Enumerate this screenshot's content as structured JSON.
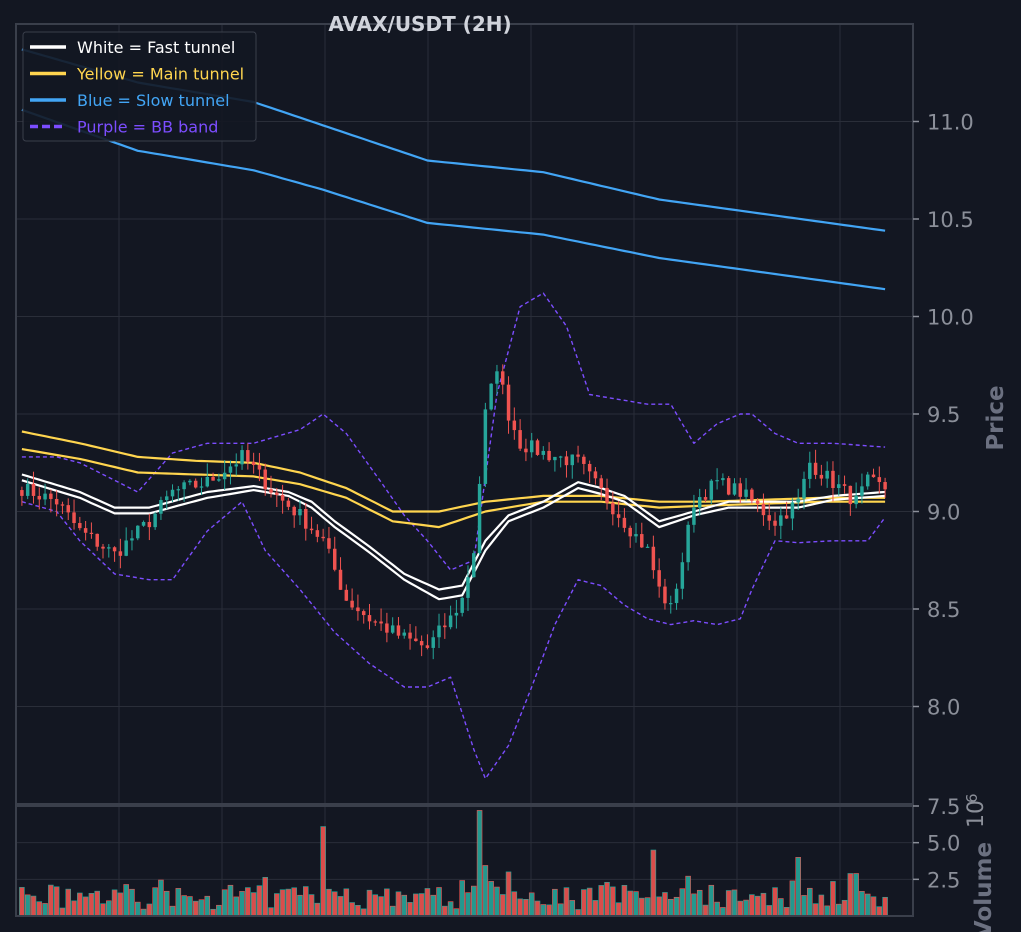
{
  "chart_data": {
    "type": "candlestick",
    "title": "AVAX/USDT (2H)",
    "price_axis": {
      "label": "Price",
      "ylim": [
        7.5,
        11.5
      ],
      "ticks": [
        8.0,
        8.5,
        9.0,
        9.5,
        10.0,
        10.5,
        11.0
      ]
    },
    "volume_axis": {
      "label": "Volume",
      "multiplier_label": "1e6",
      "ylim": [
        0,
        7.5
      ],
      "ticks": [
        2.5,
        5.0,
        7.5
      ]
    },
    "grid": true,
    "legend_position": "top-left",
    "legend": [
      {
        "label": "White = Fast tunnel",
        "color": "#ffffff",
        "style": "solid"
      },
      {
        "label": "Yellow = Main tunnel",
        "color": "#ffd54f",
        "style": "solid"
      },
      {
        "label": "Blue = Slow tunnel",
        "color": "#42a5f5",
        "style": "solid"
      },
      {
        "label": "Purple = BB band",
        "color": "#7c4dff",
        "style": "dashed"
      }
    ],
    "colors": {
      "up": "#26a69a",
      "down": "#ef5350",
      "background": "#131722",
      "grid": "#2a2e39",
      "axis": "#8b8f99"
    },
    "n_candles": 150,
    "close_anchors": [
      [
        0,
        9.12
      ],
      [
        6,
        9.05
      ],
      [
        10,
        8.9
      ],
      [
        16,
        8.78
      ],
      [
        22,
        8.95
      ],
      [
        26,
        9.1
      ],
      [
        32,
        9.15
      ],
      [
        38,
        9.28
      ],
      [
        40,
        9.22
      ],
      [
        44,
        9.08
      ],
      [
        48,
        8.98
      ],
      [
        52,
        8.85
      ],
      [
        54,
        8.7
      ],
      [
        56,
        8.55
      ],
      [
        60,
        8.45
      ],
      [
        66,
        8.35
      ],
      [
        70,
        8.3
      ],
      [
        72,
        8.38
      ],
      [
        74,
        8.45
      ],
      [
        76,
        8.55
      ],
      [
        78,
        8.8
      ],
      [
        80,
        9.5
      ],
      [
        82,
        9.75
      ],
      [
        84,
        9.5
      ],
      [
        86,
        9.35
      ],
      [
        90,
        9.3
      ],
      [
        96,
        9.25
      ],
      [
        100,
        9.1
      ],
      [
        104,
        8.95
      ],
      [
        108,
        8.8
      ],
      [
        110,
        8.6
      ],
      [
        112,
        8.5
      ],
      [
        114,
        8.75
      ],
      [
        116,
        9.05
      ],
      [
        120,
        9.15
      ],
      [
        124,
        9.1
      ],
      [
        128,
        9.0
      ],
      [
        130,
        8.95
      ],
      [
        134,
        9.05
      ],
      [
        136,
        9.25
      ],
      [
        140,
        9.15
      ],
      [
        144,
        9.05
      ],
      [
        146,
        9.15
      ],
      [
        149,
        9.12
      ]
    ],
    "fast_tunnel": {
      "upper": [
        [
          0,
          9.19
        ],
        [
          10,
          9.1
        ],
        [
          16,
          9.02
        ],
        [
          22,
          9.02
        ],
        [
          32,
          9.1
        ],
        [
          40,
          9.13
        ],
        [
          46,
          9.1
        ],
        [
          50,
          9.05
        ],
        [
          54,
          8.95
        ],
        [
          60,
          8.82
        ],
        [
          66,
          8.68
        ],
        [
          72,
          8.6
        ],
        [
          76,
          8.62
        ],
        [
          80,
          8.85
        ],
        [
          84,
          8.98
        ],
        [
          90,
          9.05
        ],
        [
          96,
          9.15
        ],
        [
          100,
          9.12
        ],
        [
          104,
          9.08
        ],
        [
          110,
          8.95
        ],
        [
          116,
          9.0
        ],
        [
          122,
          9.05
        ],
        [
          128,
          9.05
        ],
        [
          134,
          9.05
        ],
        [
          140,
          9.08
        ],
        [
          149,
          9.1
        ]
      ],
      "lower": [
        [
          0,
          9.16
        ],
        [
          10,
          9.07
        ],
        [
          16,
          8.99
        ],
        [
          22,
          8.99
        ],
        [
          32,
          9.07
        ],
        [
          40,
          9.11
        ],
        [
          46,
          9.08
        ],
        [
          50,
          9.02
        ],
        [
          54,
          8.92
        ],
        [
          60,
          8.79
        ],
        [
          66,
          8.65
        ],
        [
          72,
          8.55
        ],
        [
          76,
          8.57
        ],
        [
          80,
          8.8
        ],
        [
          84,
          8.95
        ],
        [
          90,
          9.02
        ],
        [
          96,
          9.12
        ],
        [
          100,
          9.09
        ],
        [
          104,
          9.05
        ],
        [
          110,
          8.92
        ],
        [
          116,
          8.98
        ],
        [
          122,
          9.02
        ],
        [
          128,
          9.02
        ],
        [
          134,
          9.02
        ],
        [
          140,
          9.06
        ],
        [
          149,
          9.08
        ]
      ]
    },
    "main_tunnel": {
      "upper": [
        [
          0,
          9.41
        ],
        [
          10,
          9.35
        ],
        [
          20,
          9.28
        ],
        [
          30,
          9.26
        ],
        [
          40,
          9.25
        ],
        [
          48,
          9.2
        ],
        [
          56,
          9.12
        ],
        [
          64,
          9.0
        ],
        [
          72,
          9.0
        ],
        [
          80,
          9.05
        ],
        [
          90,
          9.08
        ],
        [
          100,
          9.08
        ],
        [
          110,
          9.05
        ],
        [
          118,
          9.05
        ],
        [
          128,
          9.06
        ],
        [
          138,
          9.07
        ],
        [
          149,
          9.07
        ]
      ],
      "lower": [
        [
          0,
          9.32
        ],
        [
          10,
          9.27
        ],
        [
          20,
          9.2
        ],
        [
          30,
          9.19
        ],
        [
          40,
          9.18
        ],
        [
          48,
          9.14
        ],
        [
          56,
          9.07
        ],
        [
          64,
          8.95
        ],
        [
          72,
          8.92
        ],
        [
          80,
          9.0
        ],
        [
          90,
          9.05
        ],
        [
          100,
          9.05
        ],
        [
          110,
          9.02
        ],
        [
          118,
          9.03
        ],
        [
          128,
          9.04
        ],
        [
          138,
          9.05
        ],
        [
          149,
          9.05
        ]
      ]
    },
    "slow_tunnel": {
      "upper": [
        [
          0,
          11.37
        ],
        [
          20,
          11.2
        ],
        [
          40,
          11.1
        ],
        [
          52,
          10.98
        ],
        [
          70,
          10.8
        ],
        [
          90,
          10.74
        ],
        [
          110,
          10.6
        ],
        [
          149,
          10.44
        ]
      ],
      "lower": [
        [
          0,
          11.06
        ],
        [
          20,
          10.85
        ],
        [
          40,
          10.75
        ],
        [
          52,
          10.65
        ],
        [
          70,
          10.48
        ],
        [
          90,
          10.42
        ],
        [
          110,
          10.3
        ],
        [
          149,
          10.14
        ]
      ]
    },
    "bb_band": {
      "upper": [
        [
          0,
          9.28
        ],
        [
          6,
          9.28
        ],
        [
          10,
          9.25
        ],
        [
          20,
          9.1
        ],
        [
          26,
          9.3
        ],
        [
          32,
          9.35
        ],
        [
          40,
          9.35
        ],
        [
          48,
          9.42
        ],
        [
          52,
          9.5
        ],
        [
          56,
          9.4
        ],
        [
          62,
          9.15
        ],
        [
          66,
          8.98
        ],
        [
          70,
          8.85
        ],
        [
          74,
          8.7
        ],
        [
          78,
          8.75
        ],
        [
          82,
          9.6
        ],
        [
          86,
          10.05
        ],
        [
          90,
          10.12
        ],
        [
          94,
          9.95
        ],
        [
          98,
          9.6
        ],
        [
          102,
          9.58
        ],
        [
          108,
          9.55
        ],
        [
          112,
          9.55
        ],
        [
          116,
          9.35
        ],
        [
          120,
          9.45
        ],
        [
          124,
          9.5
        ],
        [
          126,
          9.5
        ],
        [
          130,
          9.4
        ],
        [
          134,
          9.35
        ],
        [
          140,
          9.35
        ],
        [
          149,
          9.33
        ]
      ],
      "lower": [
        [
          0,
          9.05
        ],
        [
          6,
          9.0
        ],
        [
          10,
          8.85
        ],
        [
          16,
          8.68
        ],
        [
          22,
          8.65
        ],
        [
          26,
          8.65
        ],
        [
          32,
          8.9
        ],
        [
          38,
          9.05
        ],
        [
          42,
          8.8
        ],
        [
          48,
          8.6
        ],
        [
          54,
          8.38
        ],
        [
          60,
          8.22
        ],
        [
          66,
          8.1
        ],
        [
          70,
          8.1
        ],
        [
          74,
          8.15
        ],
        [
          78,
          7.78
        ],
        [
          80,
          7.63
        ],
        [
          84,
          7.8
        ],
        [
          88,
          8.1
        ],
        [
          92,
          8.42
        ],
        [
          96,
          8.65
        ],
        [
          100,
          8.62
        ],
        [
          104,
          8.52
        ],
        [
          108,
          8.45
        ],
        [
          112,
          8.42
        ],
        [
          116,
          8.44
        ],
        [
          120,
          8.42
        ],
        [
          124,
          8.45
        ],
        [
          126,
          8.6
        ],
        [
          130,
          8.85
        ],
        [
          134,
          8.84
        ],
        [
          140,
          8.85
        ],
        [
          146,
          8.85
        ],
        [
          149,
          8.97
        ]
      ]
    },
    "volume_spikes": [
      [
        52,
        6.1
      ],
      [
        79,
        7.2
      ],
      [
        109,
        4.5
      ],
      [
        134,
        4.0
      ],
      [
        143,
        2.9
      ],
      [
        144,
        2.9
      ]
    ]
  }
}
